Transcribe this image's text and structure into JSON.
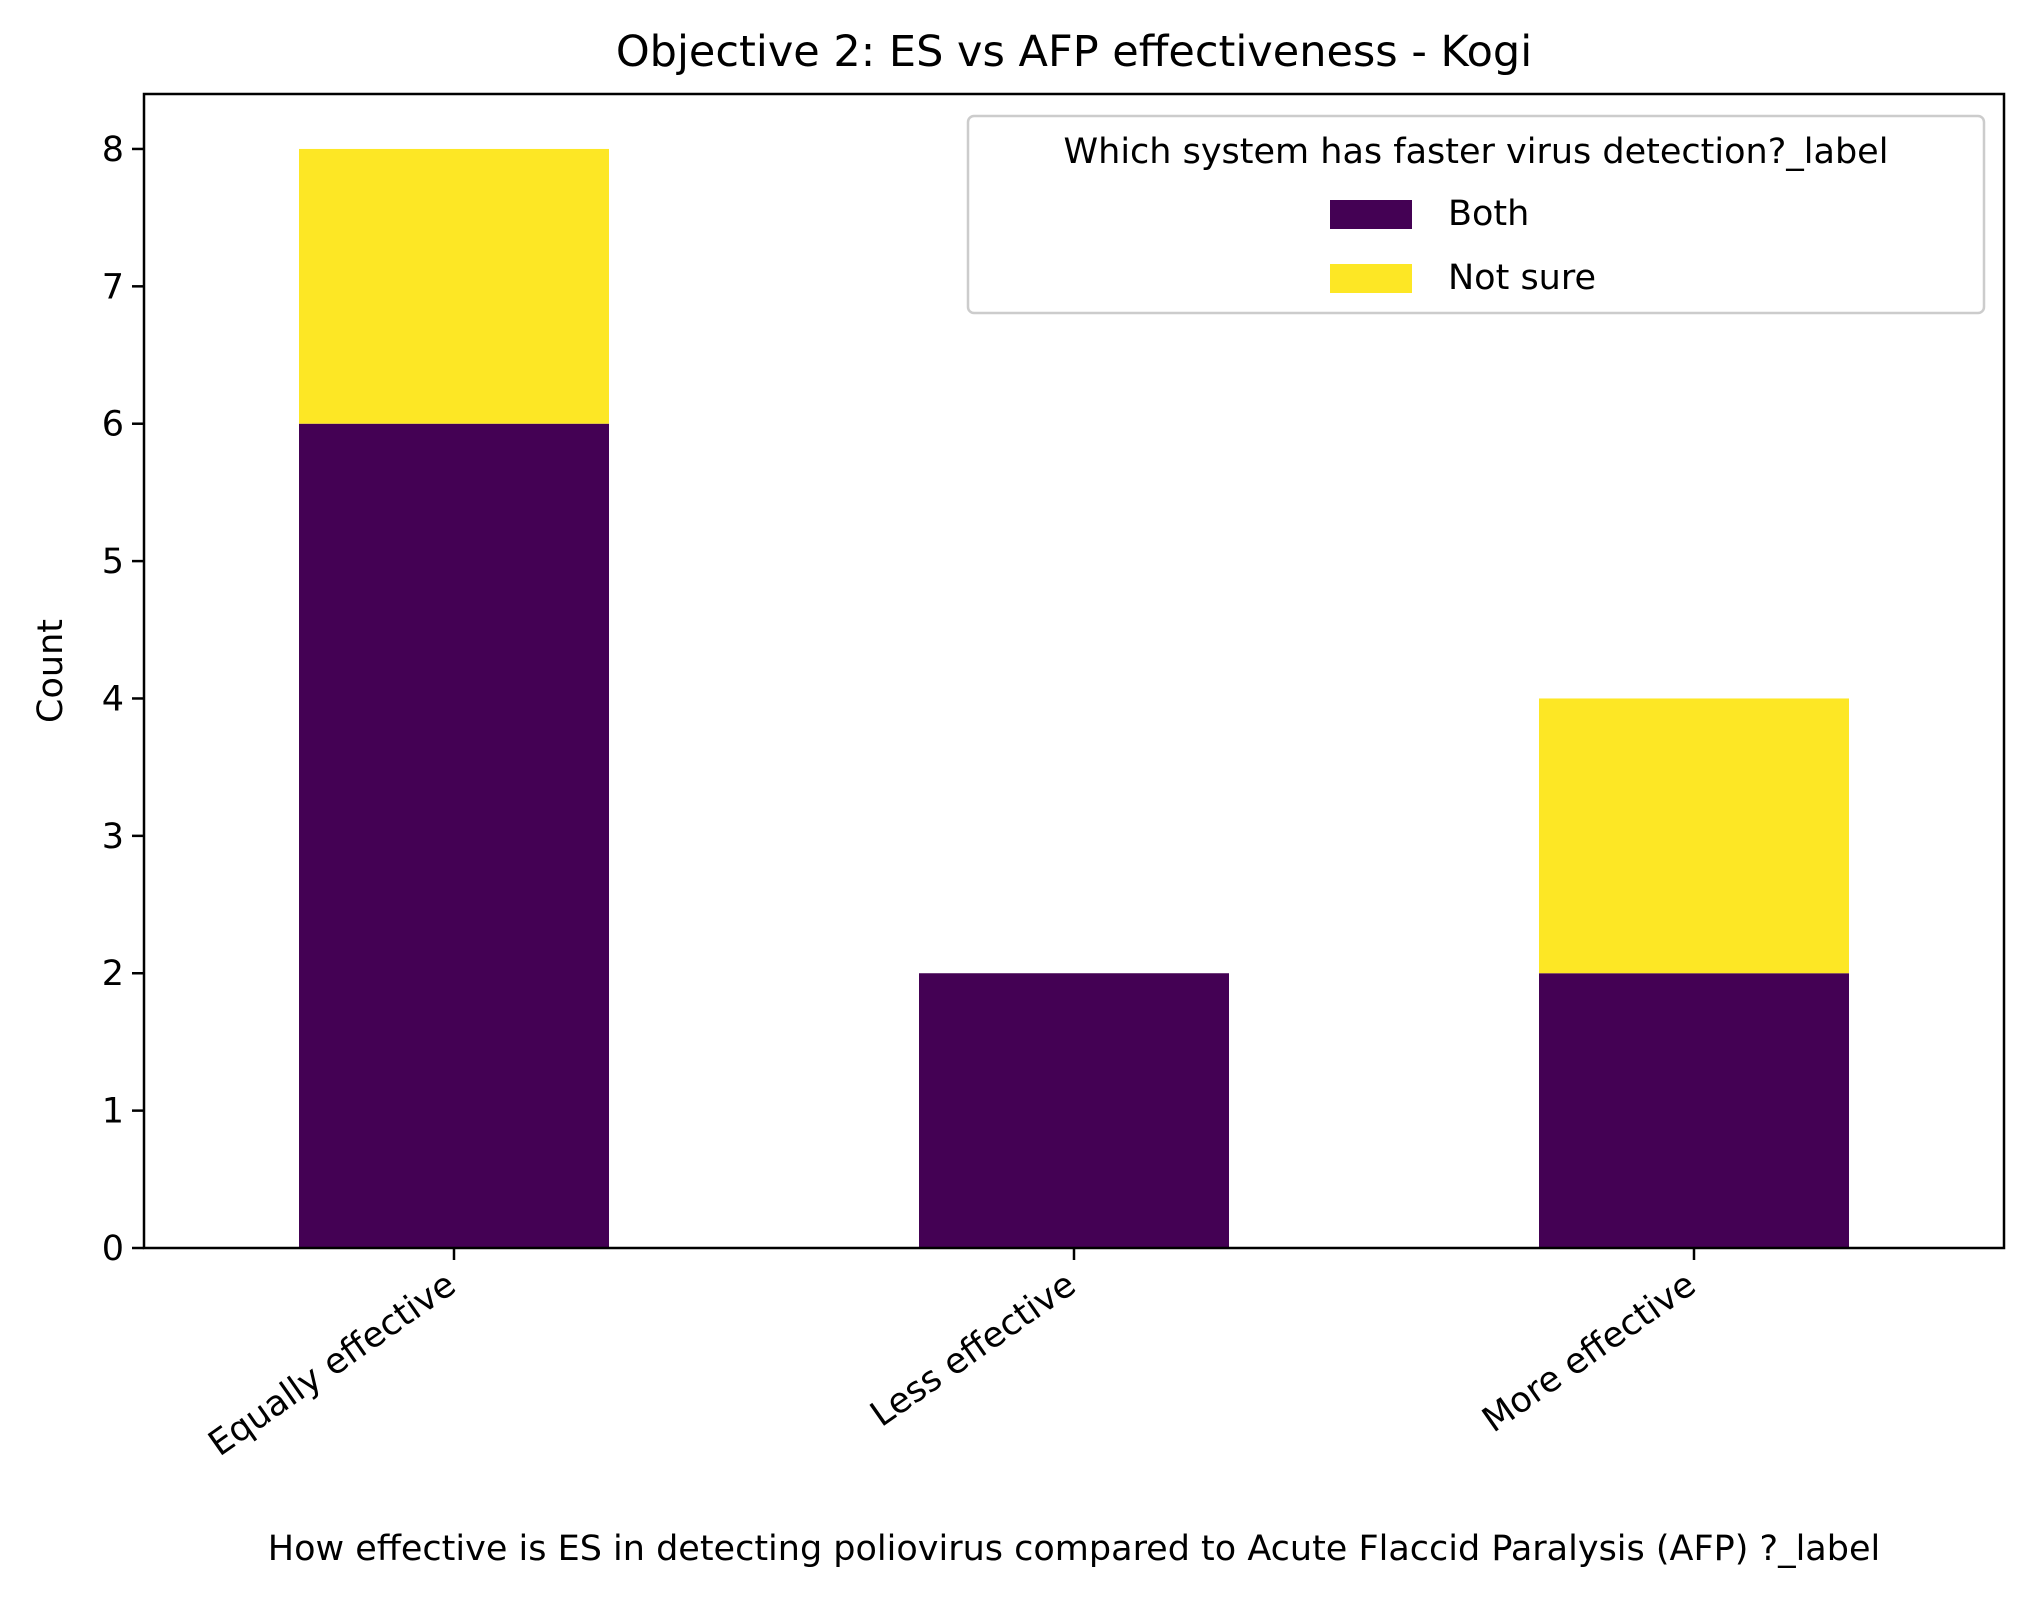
{
  "chart_data": {
    "type": "bar",
    "stacked": true,
    "title": "Objective 2: ES vs AFP effectiveness - Kogi",
    "xlabel": "How effective is ES in detecting poliovirus compared to  Acute Flaccid Paralysis (AFP) ?_label",
    "ylabel": "Count",
    "categories": [
      "Equally effective",
      "Less effective",
      "More effective"
    ],
    "series": [
      {
        "name": "Both",
        "color": "#440154",
        "values": [
          6,
          2,
          2
        ]
      },
      {
        "name": "Not sure",
        "color": "#fde725",
        "values": [
          2,
          0,
          2
        ]
      }
    ],
    "ylim": [
      0,
      8.4
    ],
    "yticks": [
      0,
      1,
      2,
      3,
      4,
      5,
      6,
      7,
      8
    ],
    "legend": {
      "title": "Which system has faster virus detection?_label",
      "position": "top-right"
    },
    "grid": false
  }
}
